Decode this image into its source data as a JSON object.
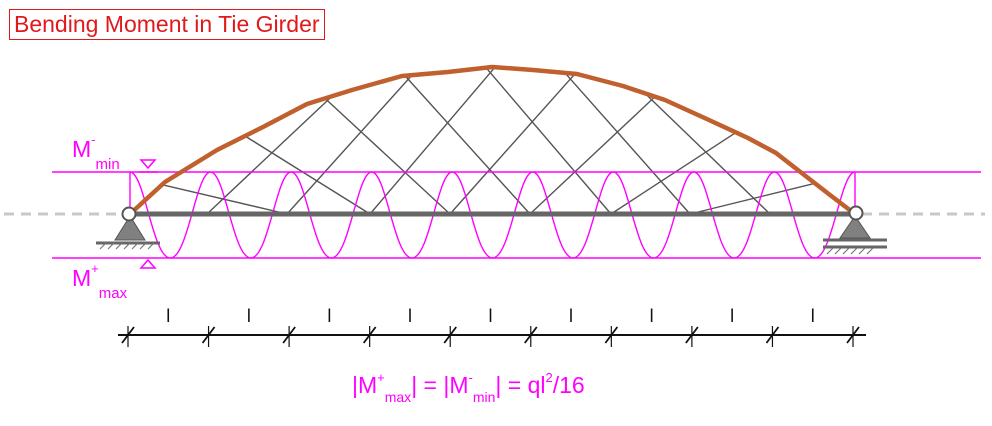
{
  "title": "Bending Moment in Tie Girder",
  "labels": {
    "m_min": {
      "symbol": "M",
      "sup": "-",
      "sub": "min"
    },
    "m_max": {
      "symbol": "M",
      "sup": "+",
      "sub": "max"
    }
  },
  "formula": {
    "open1": "|M",
    "sup1": "+",
    "sub1": "max",
    "mid": "| = |M",
    "sup2": "-",
    "sub2": "min",
    "eq": "| = ql",
    "sup3": "2",
    "tail": "/16"
  },
  "dimension_labels": [
    "l",
    "l",
    "l",
    "l",
    "l",
    "l",
    "l",
    "l",
    "l"
  ],
  "colors": {
    "title": "#e0191b",
    "moment": "#ff00ff",
    "arch": "#c0602f",
    "tie": "#666666",
    "hangers": "#555555",
    "support": "#777777",
    "axis_dashes": "#c8c8c8"
  },
  "icons": [
    "pin-support-icon",
    "roller-support-icon",
    "hinge-icon"
  ]
}
